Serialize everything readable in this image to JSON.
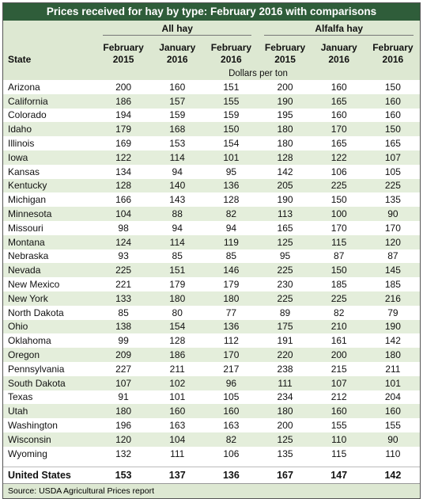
{
  "title": "Prices received for hay by type: February 2016 with comparisons",
  "table": {
    "state_header": "State",
    "groups": [
      "All hay",
      "Alfalfa hay"
    ],
    "columns": [
      "February 2015",
      "January 2016",
      "February 2016",
      "February 2015",
      "January 2016",
      "February 2016"
    ],
    "unit": "Dollars per ton",
    "rows": [
      [
        "Arizona",
        200,
        160,
        151,
        200,
        160,
        150
      ],
      [
        "California",
        186,
        157,
        155,
        190,
        165,
        160
      ],
      [
        "Colorado",
        194,
        159,
        159,
        195,
        160,
        160
      ],
      [
        "Idaho",
        179,
        168,
        150,
        180,
        170,
        150
      ],
      [
        "Illinois",
        169,
        153,
        154,
        180,
        165,
        165
      ],
      [
        "Iowa",
        122,
        114,
        101,
        128,
        122,
        107
      ],
      [
        "Kansas",
        134,
        94,
        95,
        142,
        106,
        105
      ],
      [
        "Kentucky",
        128,
        140,
        136,
        205,
        225,
        225
      ],
      [
        "Michigan",
        166,
        143,
        128,
        190,
        150,
        135
      ],
      [
        "Minnesota",
        104,
        88,
        82,
        113,
        100,
        90
      ],
      [
        "Missouri",
        98,
        94,
        94,
        165,
        170,
        170
      ],
      [
        "Montana",
        124,
        114,
        119,
        125,
        115,
        120
      ],
      [
        "Nebraska",
        93,
        85,
        85,
        95,
        87,
        87
      ],
      [
        "Nevada",
        225,
        151,
        146,
        225,
        150,
        145
      ],
      [
        "New Mexico",
        221,
        179,
        179,
        230,
        185,
        185
      ],
      [
        "New York",
        133,
        180,
        180,
        225,
        225,
        216
      ],
      [
        "North Dakota",
        85,
        80,
        77,
        89,
        82,
        79
      ],
      [
        "Ohio",
        138,
        154,
        136,
        175,
        210,
        190
      ],
      [
        "Oklahoma",
        99,
        128,
        112,
        191,
        161,
        142
      ],
      [
        "Oregon",
        209,
        186,
        170,
        220,
        200,
        180
      ],
      [
        "Pennsylvania",
        227,
        211,
        217,
        238,
        215,
        211
      ],
      [
        "South Dakota",
        107,
        102,
        96,
        111,
        107,
        101
      ],
      [
        "Texas",
        91,
        101,
        105,
        234,
        212,
        204
      ],
      [
        "Utah",
        180,
        160,
        160,
        180,
        160,
        160
      ],
      [
        "Washington",
        196,
        163,
        163,
        200,
        155,
        155
      ],
      [
        "Wisconsin",
        120,
        104,
        82,
        125,
        110,
        90
      ],
      [
        "Wyoming",
        132,
        111,
        106,
        135,
        115,
        110
      ]
    ],
    "total": [
      "United States",
      153,
      137,
      136,
      167,
      147,
      142
    ]
  },
  "source": "Source: USDA Agricultural Prices report"
}
